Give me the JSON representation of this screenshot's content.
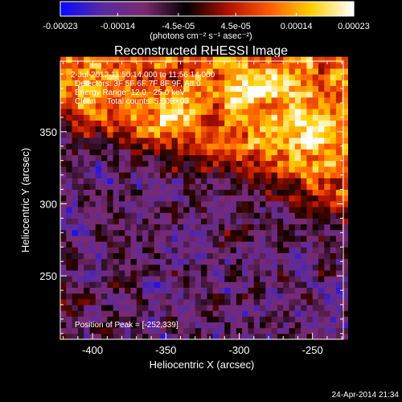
{
  "chart_data": {
    "type": "heatmap",
    "title": "Reconstructed RHESSI Image",
    "xlabel": "Heliocentric X (arcsec)",
    "ylabel": "Heliocentric Y (arcsec)",
    "xlim": [
      -422,
      -229
    ],
    "ylim": [
      206,
      399
    ],
    "x_ticks": [
      -400,
      -350,
      -300,
      -250
    ],
    "x_tick_labels": [
      "-400",
      "-350",
      "-300",
      "-250"
    ],
    "y_ticks": [
      250,
      300,
      350
    ],
    "y_tick_labels": [
      "250",
      "300",
      "350"
    ],
    "colorbar": {
      "min": -0.00023,
      "max": 0.00023,
      "tick_values": [
        -0.00023,
        -0.00014,
        -4.5e-05,
        4.5e-05,
        0.00014,
        0.00023
      ],
      "tick_labels": [
        "-0.00023",
        "-0.00014",
        "-4.5e-05",
        "4.5e-05",
        "0.00014",
        "0.00023"
      ],
      "units_label": "(photons cm⁻² s⁻¹ asec⁻²)",
      "colors": [
        "#0a0aff",
        "#5a2aa0",
        "#7a2a70",
        "#000000",
        "#b01000",
        "#ff5a00",
        "#ffd000",
        "#ffffff"
      ]
    },
    "info_lines": [
      "2-Jul-2012 11:50:14.000 to 11:56:14.000",
      "Detectors: 3F 5F 6F 7F 8F 9F, Att 0",
      "Energy Range: 12.0 - 25.0 keV",
      "Clean     Total counts: 5.50E+03"
    ],
    "peak_label": "Position of Peak = [-252,339]",
    "peak": [
      -252,
      339
    ],
    "grid": false
  },
  "timestamp": "24-Apr-2014 21:34"
}
